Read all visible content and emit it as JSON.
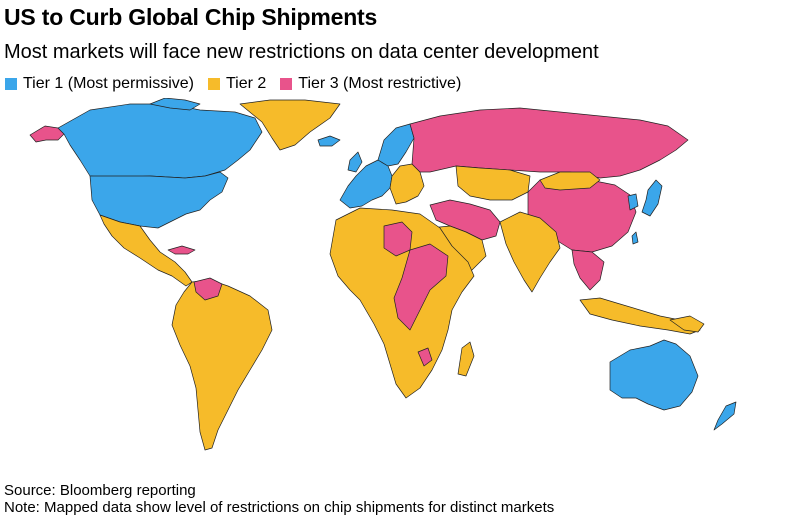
{
  "title": "US to Curb Global Chip Shipments",
  "subtitle": "Most markets will face new restrictions on data center development",
  "legend": [
    {
      "label": "Tier 1 (Most permissive)",
      "color": "#3ba6ea"
    },
    {
      "label": "Tier 2",
      "color": "#f6bb2a"
    },
    {
      "label": "Tier 3 (Most restrictive)",
      "color": "#e8538b"
    }
  ],
  "colors": {
    "tier1": "#3ba6ea",
    "tier2": "#f6bb2a",
    "tier3": "#e8538b"
  },
  "source": "Source: Bloomberg reporting",
  "note": "Note: Mapped data show level of restrictions on chip shipments for distinct markets"
}
